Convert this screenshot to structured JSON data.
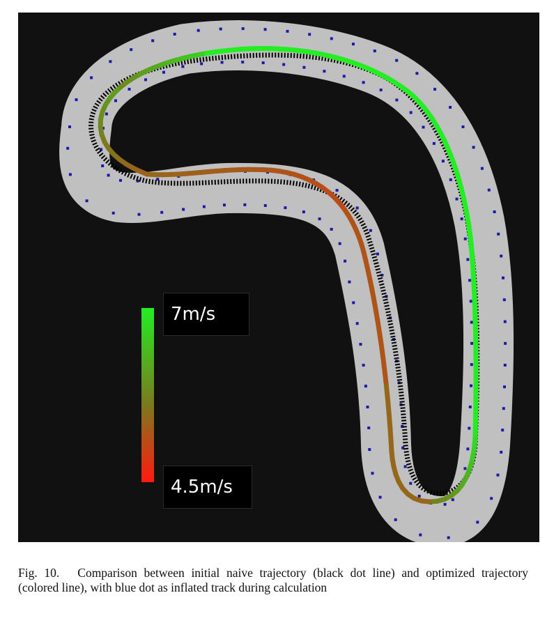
{
  "figure": {
    "colorbar": {
      "max_label": "7m/s",
      "min_label": "4.5m/s",
      "max_color": "#22ee22",
      "mid_color": "#7a7a1e",
      "min_color": "#ff1a10"
    },
    "colors": {
      "background": "#111111",
      "track": "#c0c0c0",
      "inflated_track_dots": "#1a1aa8",
      "naive_trajectory": "#000000"
    }
  },
  "caption": {
    "label": "Fig. 10.",
    "text": "Comparison between initial naive trajectory (black dot line) and optimized trajectory (colored line), with blue dot as inflated track during calculation"
  }
}
